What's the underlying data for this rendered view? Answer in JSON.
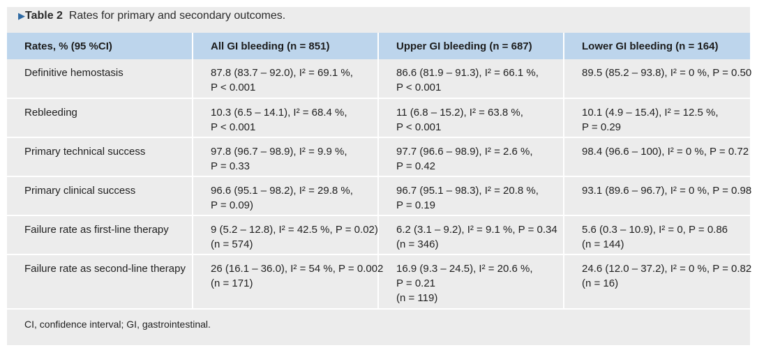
{
  "caption": {
    "marker": "▶",
    "label": "Table 2",
    "text": "Rates for primary and secondary outcomes."
  },
  "table": {
    "headers": [
      "Rates, % (95 %CI)",
      "All GI bleeding (n = 851)",
      "Upper GI bleeding (n = 687)",
      "Lower GI bleeding (n = 164)"
    ],
    "rows": [
      {
        "label": "Definitive hemostasis",
        "cells": [
          [
            "87.8 (83.7 – 92.0), I² = 69.1 %,",
            "P < 0.001"
          ],
          [
            "86.6 (81.9 – 91.3), I² = 66.1 %,",
            "P < 0.001"
          ],
          [
            "89.5 (85.2 – 93.8), I² = 0 %, P = 0.50"
          ]
        ]
      },
      {
        "label": "Rebleeding",
        "cells": [
          [
            "10.3 (6.5 – 14.1), I² = 68.4 %,",
            "P < 0.001"
          ],
          [
            "11 (6.8 – 15.2), I² = 63.8 %,",
            "P < 0.001"
          ],
          [
            "10.1 (4.9 – 15.4), I² = 12.5 %,",
            "P = 0.29"
          ]
        ]
      },
      {
        "label": "Primary technical success",
        "cells": [
          [
            "97.8 (96.7 – 98.9), I² = 9.9 %,",
            "P = 0.33"
          ],
          [
            "97.7 (96.6 – 98.9), I² = 2.6 %,",
            "P = 0.42"
          ],
          [
            "98.4 (96.6 – 100), I² = 0 %, P = 0.72"
          ]
        ]
      },
      {
        "label": "Primary clinical success",
        "cells": [
          [
            "96.6 (95.1 – 98.2), I² = 29.8 %,",
            "P = 0.09)"
          ],
          [
            "96.7 (95.1 – 98.3), I² = 20.8 %,",
            "P = 0.19"
          ],
          [
            "93.1 (89.6 – 96.7), I² = 0 %, P = 0.98"
          ]
        ]
      },
      {
        "label": "Failure rate as first-line therapy",
        "cells": [
          [
            "9 (5.2 – 12.8), I² = 42.5 %, P = 0.02)",
            "(n = 574)"
          ],
          [
            "6.2 (3.1 – 9.2), I² = 9.1 %, P = 0.34",
            "(n = 346)"
          ],
          [
            "5.6 (0.3 – 10.9), I² = 0, P = 0.86",
            "(n = 144)"
          ]
        ]
      },
      {
        "label": "Failure rate as second-line therapy",
        "cells": [
          [
            "26 (16.1 – 36.0), I² = 54 %, P = 0.002",
            "(n = 171)"
          ],
          [
            "16.9 (9.3 – 24.5), I² = 20.6 %,",
            "P = 0.21",
            "(n = 119)"
          ],
          [
            "24.6 (12.0 – 37.2), I² = 0 %, P = 0.82",
            "(n = 16)"
          ]
        ]
      }
    ],
    "footnote": "CI, confidence interval; GI, gastrointestinal."
  }
}
